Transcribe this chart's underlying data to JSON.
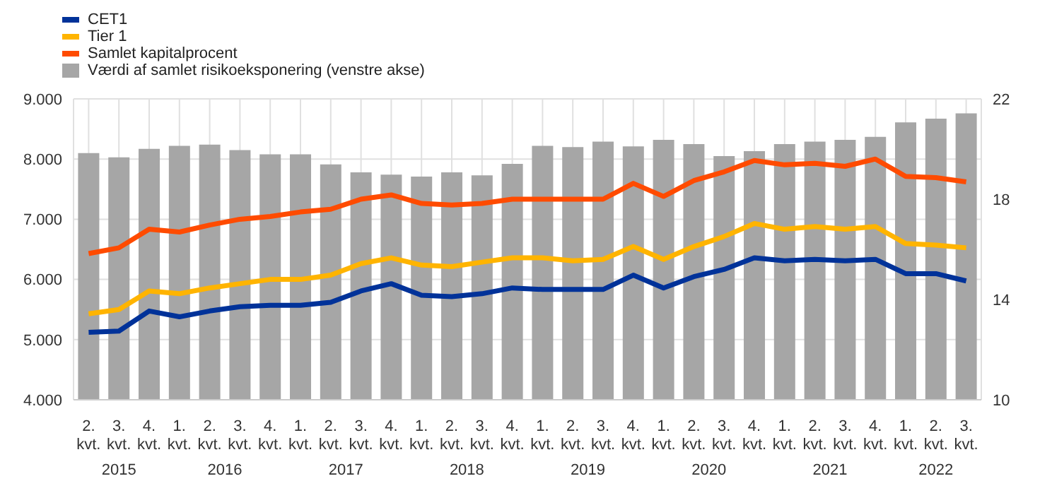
{
  "chart_data": {
    "type": "line",
    "categories": [
      "2. kvt.",
      "3. kvt.",
      "4. kvt.",
      "1. kvt.",
      "2. kvt.",
      "3. kvt.",
      "4. kvt.",
      "1. kvt.",
      "2. kvt.",
      "3. kvt.",
      "4. kvt.",
      "1. kvt.",
      "2. kvt.",
      "3. kvt.",
      "4. kvt.",
      "1. kvt.",
      "2. kvt.",
      "3. kvt.",
      "4. kvt.",
      "1. kvt.",
      "2. kvt.",
      "3. kvt.",
      "4. kvt.",
      "1. kvt.",
      "2. kvt.",
      "3. kvt.",
      "4. kvt.",
      "1. kvt.",
      "2. kvt.",
      "3. kvt."
    ],
    "annotations": [
      "2015",
      "2016",
      "2017",
      "2018",
      "2019",
      "2020",
      "2021",
      "2022"
    ],
    "series": [
      {
        "name": "CET1",
        "axis": "y2",
        "color": "#003299",
        "values": [
          12.69,
          12.74,
          13.54,
          13.31,
          13.54,
          13.71,
          13.77,
          13.77,
          13.89,
          14.34,
          14.63,
          14.17,
          14.11,
          14.23,
          14.46,
          14.4,
          14.4,
          14.4,
          14.97,
          14.46,
          14.91,
          15.2,
          15.66,
          15.54,
          15.6,
          15.54,
          15.6,
          15.03,
          15.03,
          14.74
        ]
      },
      {
        "name": "Tier 1",
        "axis": "y2",
        "color": "#ffb400",
        "values": [
          13.43,
          13.6,
          14.34,
          14.23,
          14.46,
          14.63,
          14.8,
          14.8,
          14.97,
          15.43,
          15.66,
          15.37,
          15.31,
          15.49,
          15.66,
          15.66,
          15.54,
          15.6,
          16.11,
          15.6,
          16.11,
          16.51,
          17.03,
          16.8,
          16.91,
          16.8,
          16.91,
          16.23,
          16.17,
          16.06
        ]
      },
      {
        "name": "Samlet kapitalprocent",
        "axis": "y2",
        "color": "#ff4b00",
        "values": [
          15.83,
          16.06,
          16.8,
          16.69,
          16.97,
          17.2,
          17.31,
          17.49,
          17.6,
          18.0,
          18.17,
          17.83,
          17.77,
          17.83,
          18.0,
          18.0,
          18.0,
          18.0,
          18.63,
          18.11,
          18.74,
          19.09,
          19.54,
          19.37,
          19.43,
          19.31,
          19.6,
          18.91,
          18.86,
          18.69
        ]
      },
      {
        "name": "Værdi af samlet risikoeksponering (venstre akse)",
        "type": "bar",
        "axis": "y",
        "color": "#a6a6a6",
        "values": [
          8100,
          8030,
          8170,
          8220,
          8240,
          8150,
          8080,
          8080,
          7910,
          7780,
          7740,
          7710,
          7780,
          7730,
          7920,
          8220,
          8200,
          8290,
          8210,
          8320,
          8250,
          8050,
          8130,
          8250,
          8290,
          8320,
          8370,
          8610,
          8670,
          8760
        ]
      }
    ],
    "ylim": [
      4000,
      9000
    ],
    "yticks": [
      {
        "value": 4000,
        "label": "4.000"
      },
      {
        "value": 5000,
        "label": "5.000"
      },
      {
        "value": 6000,
        "label": "6.000"
      },
      {
        "value": 7000,
        "label": "7.000"
      },
      {
        "value": 8000,
        "label": "8.000"
      },
      {
        "value": 9000,
        "label": "9.000"
      }
    ],
    "y2lim": [
      10,
      22
    ],
    "y2ticks": [
      10,
      14,
      18,
      22
    ],
    "grid": true,
    "legend": "top left"
  }
}
